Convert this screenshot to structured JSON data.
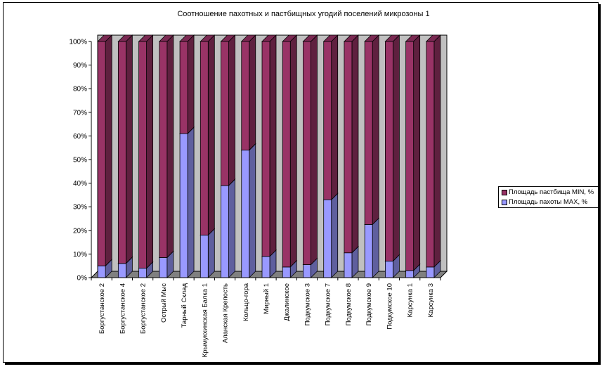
{
  "chart_data": {
    "type": "bar",
    "stacked": "percent",
    "title": "Соотношение пахотных и пастбищных угодий поселений микрозоны 1",
    "xlabel": "",
    "ylabel": "",
    "ylim": [
      0,
      100
    ],
    "yticks": [
      "0%",
      "10%",
      "20%",
      "30%",
      "40%",
      "50%",
      "60%",
      "70%",
      "80%",
      "90%",
      "100%"
    ],
    "grid": false,
    "legend_position": "right",
    "categories": [
      "Боргустанское 2",
      "Боргустанское 4",
      "Боргустанское 2",
      "Острый Мыс",
      "Тарный Склад",
      "Крымукхинская Балка 1",
      "Аланская Крепость",
      "Кольцо-гора",
      "Мирный 1",
      "Джалинское",
      "Подкумское 3",
      "Подкумское 7",
      "Подкумское 8",
      "Подкумское 9",
      "Подкумское 10",
      "Карсунка 1",
      "Карсунка 3"
    ],
    "series": [
      {
        "name": "Площадь пахоты MAX, %",
        "color": "#9999ff",
        "values": [
          5,
          6,
          4,
          8.5,
          61,
          18,
          39,
          54,
          9,
          4.5,
          5.5,
          33,
          10.5,
          22.5,
          7,
          3,
          4.5
        ]
      },
      {
        "name": "Площадь пастбища MIN, %",
        "color": "#993366",
        "values": [
          95,
          94,
          96,
          91.5,
          39,
          82,
          61,
          46,
          91,
          95.5,
          94.5,
          67,
          89.5,
          77.5,
          93,
          97,
          95.5
        ]
      }
    ],
    "legend": [
      "Площадь пастбища MIN, %",
      "Площадь пахоты MAX, %"
    ],
    "colors": {
      "wall": "#c0c0c0",
      "floor": "#808080",
      "background": "#ffffff"
    }
  }
}
